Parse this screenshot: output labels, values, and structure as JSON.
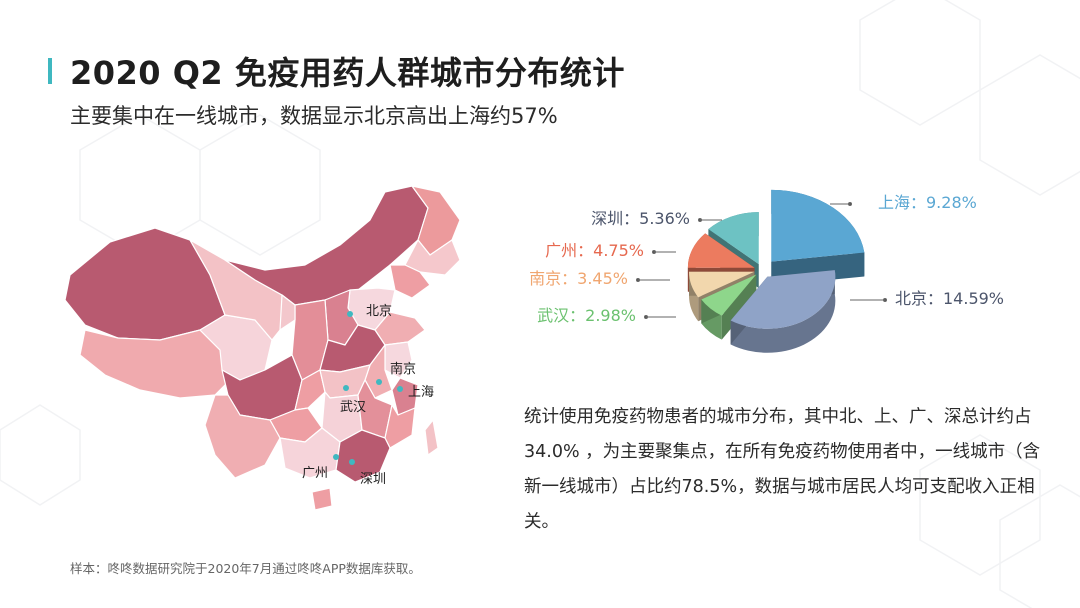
{
  "slide": {
    "title": "2020 Q2 免疫用药人群城市分布统计",
    "subtitle": "主要集中在一线城市，数据显示北京高出上海约57%",
    "description": "统计使用免疫药物患者的城市分布，其中北、上、广、深总计约占 34.0% ，为主要聚集点，在所有免疫药物使用者中，一线城市（含新一线城市）占比约78.5%，数据与城市居民人均可支配收入正相关。",
    "source_note": "样本：咚咚数据研究院于2020年7月通过咚咚APP数据库获取。"
  },
  "map": {
    "city_labels": [
      "北京",
      "南京",
      "上海",
      "武汉",
      "广州",
      "深圳"
    ],
    "marker_color": "#3fb8c0"
  },
  "chart_data": {
    "type": "pie",
    "title": "",
    "categories": [
      "北京",
      "上海",
      "深圳",
      "广州",
      "南京",
      "武汉"
    ],
    "values": [
      14.59,
      9.28,
      5.36,
      4.75,
      3.45,
      2.98
    ],
    "unit": "%",
    "labels": [
      "北京：14.59%",
      "上海：9.28%",
      "深圳：5.36%",
      "广州：4.75%",
      "南京：3.45%",
      "武汉：2.98%"
    ],
    "colors": [
      "#8fa3c7",
      "#5aa7d3",
      "#6dc2c3",
      "#ec7b5f",
      "#f2d7ad",
      "#8ed68b"
    ],
    "label_colors": [
      "#4c556b",
      "#5aa7d3",
      "#4c556b",
      "#e6684e",
      "#f0a670",
      "#6bc16f"
    ],
    "style": "3d-exploded",
    "legend": "none"
  }
}
